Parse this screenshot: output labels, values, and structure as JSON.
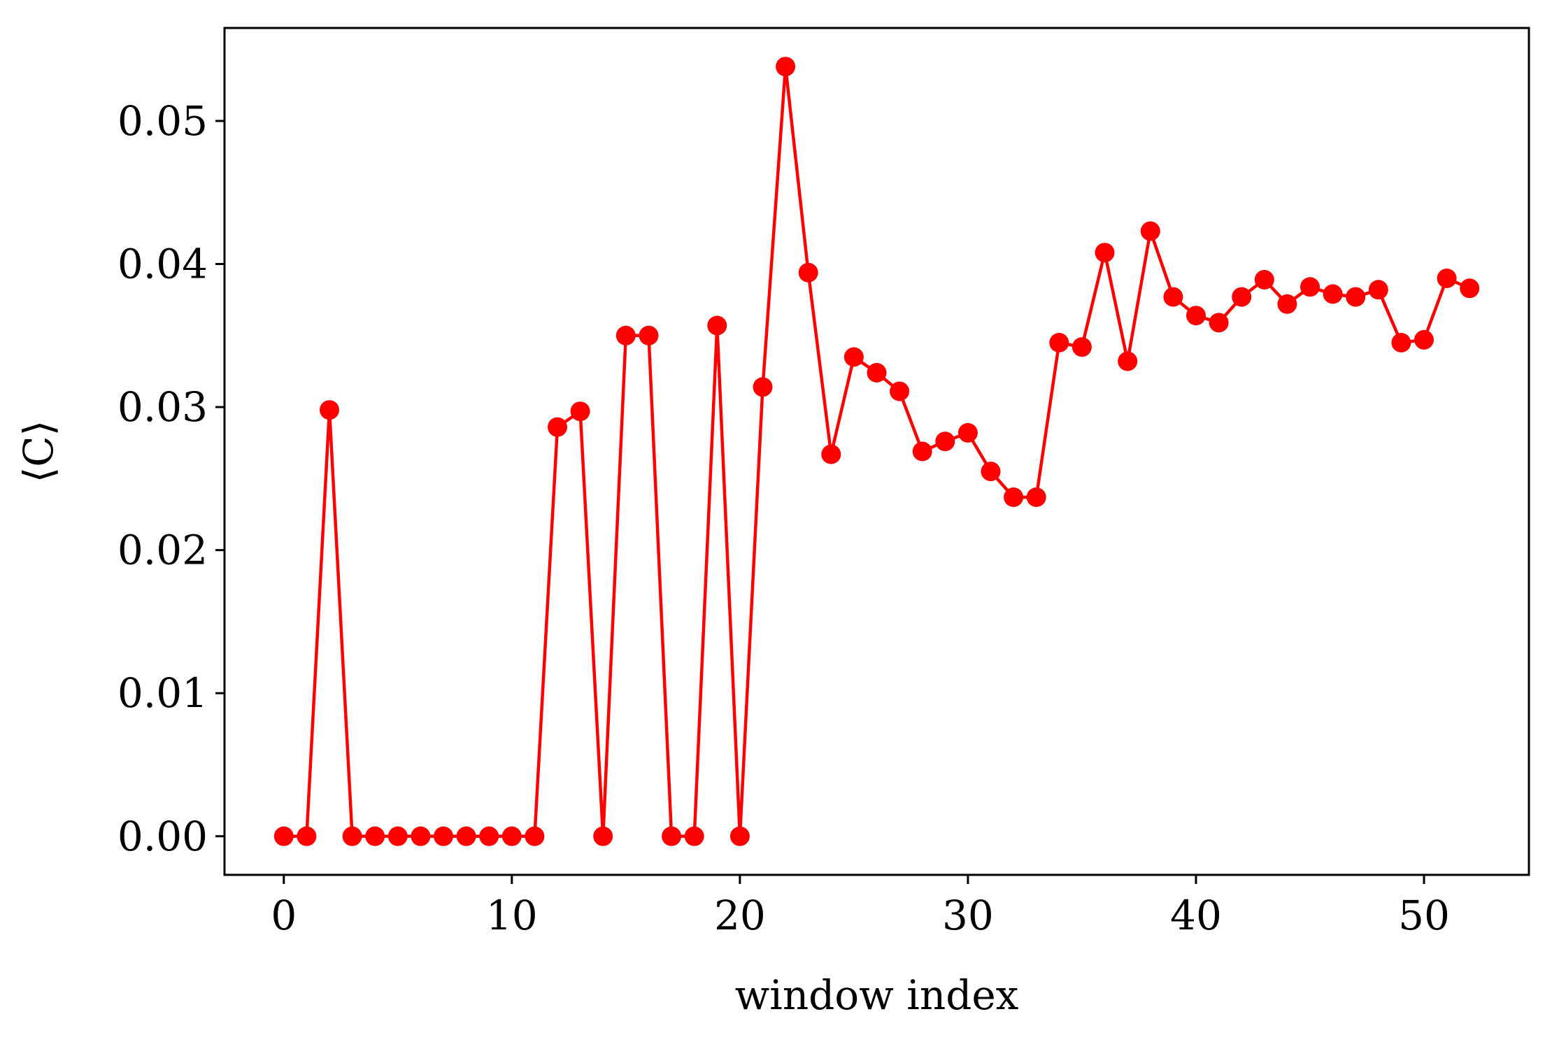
{
  "chart_data": {
    "type": "line",
    "title": "",
    "xlabel": "window index",
    "ylabel": "⟨C⟩",
    "xlim": [
      -2.6,
      54.6
    ],
    "ylim": [
      -0.0027,
      0.0565
    ],
    "xticks": [
      0,
      10,
      20,
      30,
      40,
      50
    ],
    "xtick_labels": [
      "0",
      "10",
      "20",
      "30",
      "40",
      "50"
    ],
    "yticks": [
      0.0,
      0.01,
      0.02,
      0.03,
      0.04,
      0.05
    ],
    "ytick_labels": [
      "0.00",
      "0.01",
      "0.02",
      "0.03",
      "0.04",
      "0.05"
    ],
    "grid": false,
    "legend": "none",
    "series": [
      {
        "color": "#ff0000",
        "marker": "circle",
        "x": [
          0,
          1,
          2,
          3,
          4,
          5,
          6,
          7,
          8,
          9,
          10,
          11,
          12,
          13,
          14,
          15,
          16,
          17,
          18,
          19,
          20,
          21,
          22,
          23,
          24,
          25,
          26,
          27,
          28,
          29,
          30,
          31,
          32,
          33,
          34,
          35,
          36,
          37,
          38,
          39,
          40,
          41,
          42,
          43,
          44,
          45,
          46,
          47,
          48,
          49,
          50,
          51,
          52
        ],
        "values": [
          0.0,
          0.0,
          0.0298,
          0.0,
          0.0,
          0.0,
          0.0,
          0.0,
          0.0,
          0.0,
          0.0,
          0.0,
          0.0286,
          0.0297,
          0.0,
          0.035,
          0.035,
          0.0,
          0.0,
          0.0357,
          0.0,
          0.0314,
          0.0538,
          0.0394,
          0.0267,
          0.0335,
          0.0324,
          0.0311,
          0.0269,
          0.0276,
          0.0282,
          0.0255,
          0.0237,
          0.0237,
          0.0345,
          0.0342,
          0.0408,
          0.0332,
          0.0423,
          0.0377,
          0.0364,
          0.0359,
          0.0377,
          0.0389,
          0.0372,
          0.0384,
          0.0379,
          0.0377,
          0.0382,
          0.0345,
          0.0347,
          0.039,
          0.0383
        ]
      }
    ]
  }
}
